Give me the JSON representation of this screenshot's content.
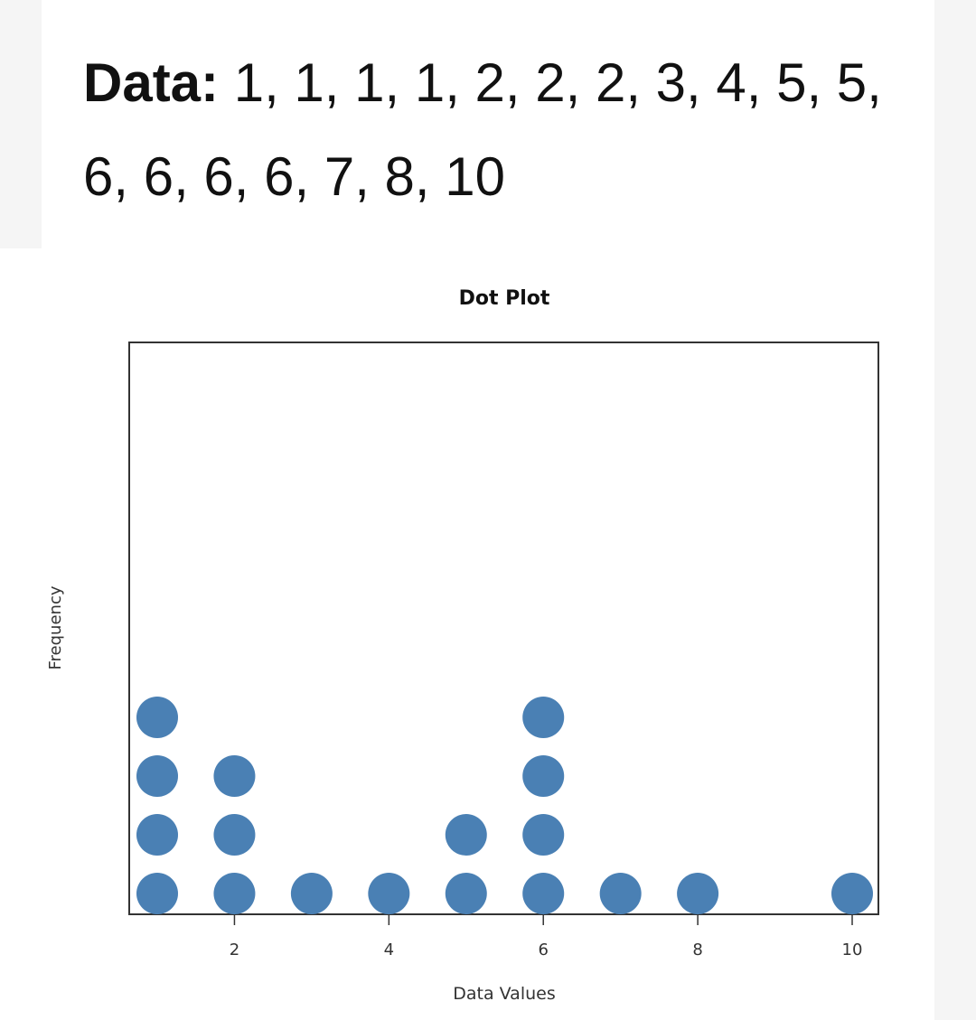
{
  "header": {
    "label": "Data:",
    "values_text": "1, 1, 1, 1, 2, 2, 2, 3, 4, 5, 5, 6, 6, 6, 6, 7, 8, 10"
  },
  "colors": {
    "dot": "#4a80b4",
    "axis": "#333333",
    "background": "#ffffff"
  },
  "chart_data": {
    "type": "scatter",
    "subtype": "dot plot",
    "title": "Dot Plot",
    "xlabel": "Data Values",
    "ylabel": "Frequency",
    "xticks": [
      "2",
      "4",
      "6",
      "8",
      "10"
    ],
    "xlim": [
      0.6,
      10.4
    ],
    "grid": false,
    "points": [
      {
        "x": 1,
        "count": 4
      },
      {
        "x": 2,
        "count": 3
      },
      {
        "x": 3,
        "count": 1
      },
      {
        "x": 4,
        "count": 1
      },
      {
        "x": 5,
        "count": 2
      },
      {
        "x": 6,
        "count": 4
      },
      {
        "x": 7,
        "count": 1
      },
      {
        "x": 8,
        "count": 1
      },
      {
        "x": 10,
        "count": 1
      }
    ]
  }
}
